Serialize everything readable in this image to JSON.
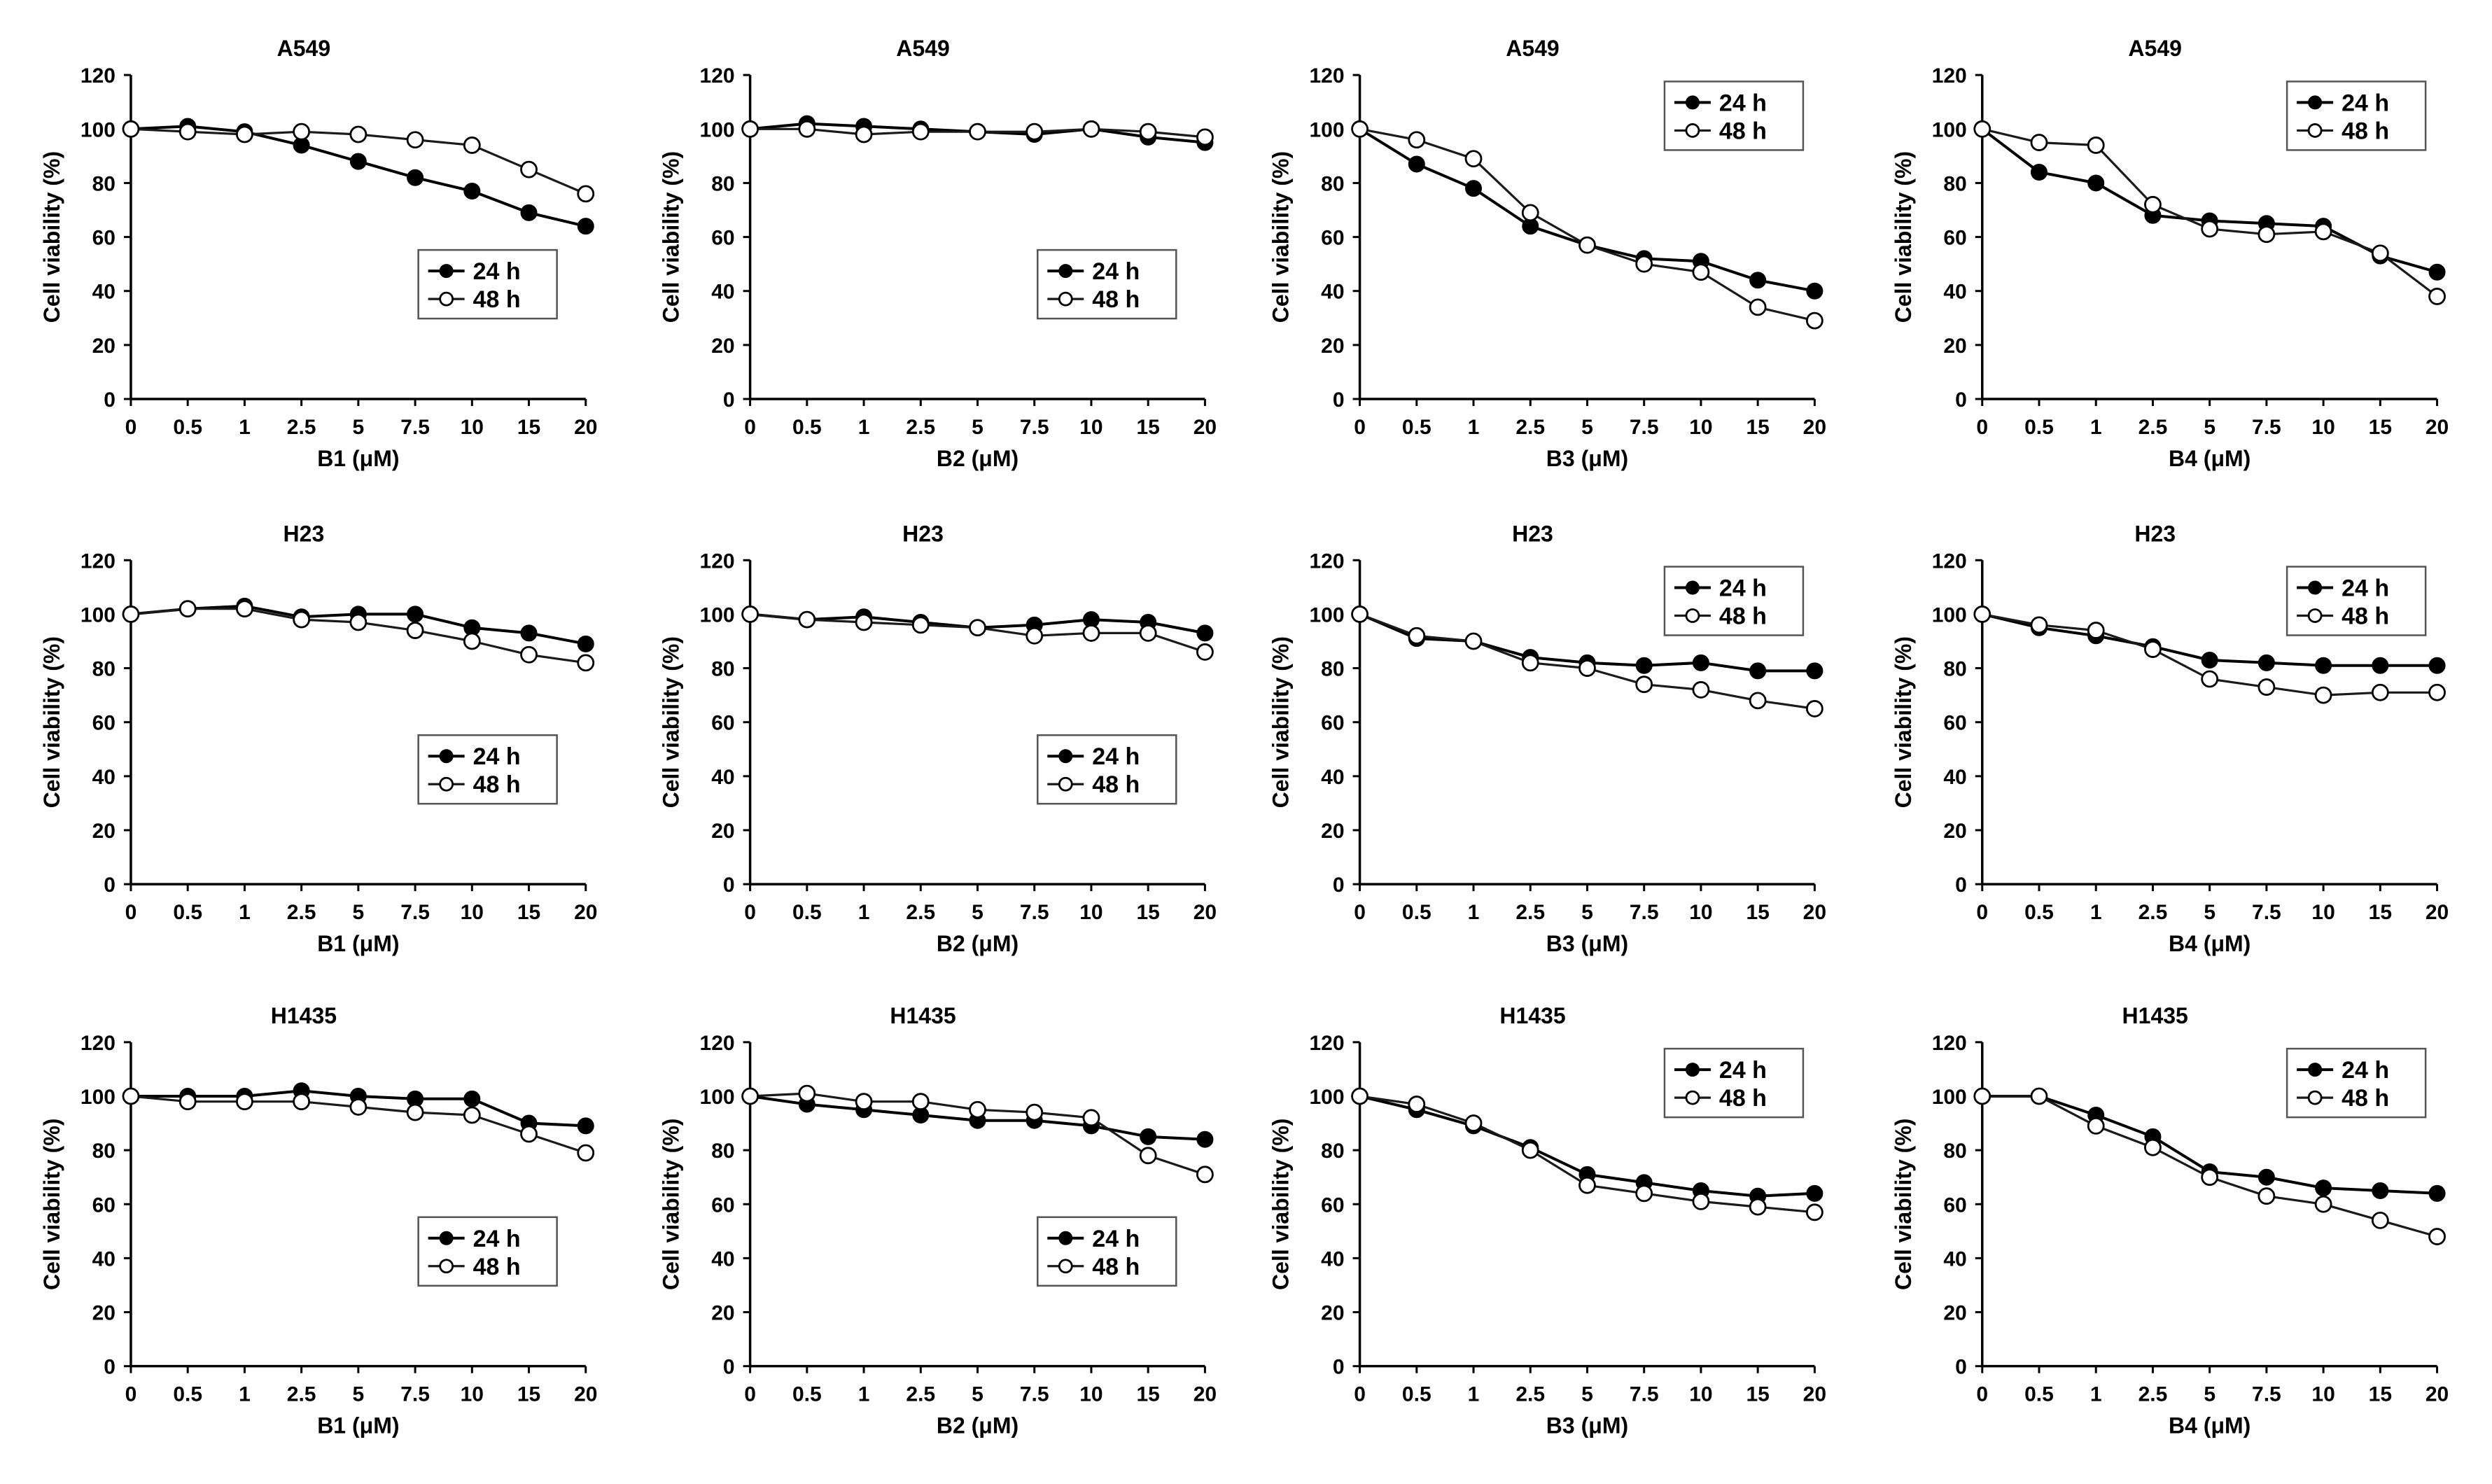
{
  "chart_data": [
    {
      "type": "line",
      "title": "A549",
      "xlabel": "B1 (μM)",
      "ylabel": "Cell viability (%)",
      "categories": [
        "0",
        "0.5",
        "1",
        "2.5",
        "5",
        "7.5",
        "10",
        "15",
        "20"
      ],
      "yticks": [
        "0",
        "20",
        "40",
        "60",
        "80",
        "100",
        "120"
      ],
      "ylim": [
        0,
        120
      ],
      "legend_loc": "lower-right",
      "series": [
        {
          "name": "24 h",
          "values": [
            100,
            101,
            99,
            94,
            88,
            82,
            77,
            69,
            64
          ]
        },
        {
          "name": "48 h",
          "values": [
            100,
            99,
            98,
            99,
            98,
            96,
            94,
            85,
            76
          ]
        }
      ]
    },
    {
      "type": "line",
      "title": "A549",
      "xlabel": "B2 (μM)",
      "ylabel": "Cell viability (%)",
      "categories": [
        "0",
        "0.5",
        "1",
        "2.5",
        "5",
        "7.5",
        "10",
        "15",
        "20"
      ],
      "yticks": [
        "0",
        "20",
        "40",
        "60",
        "80",
        "100",
        "120"
      ],
      "ylim": [
        0,
        120
      ],
      "legend_loc": "lower-right",
      "series": [
        {
          "name": "24 h",
          "values": [
            100,
            102,
            101,
            100,
            99,
            98,
            100,
            97,
            95
          ]
        },
        {
          "name": "48 h",
          "values": [
            100,
            100,
            98,
            99,
            99,
            99,
            100,
            99,
            97
          ]
        }
      ]
    },
    {
      "type": "line",
      "title": "A549",
      "xlabel": "B3 (μM)",
      "ylabel": "Cell viability (%)",
      "categories": [
        "0",
        "0.5",
        "1",
        "2.5",
        "5",
        "7.5",
        "10",
        "15",
        "20"
      ],
      "yticks": [
        "0",
        "20",
        "40",
        "60",
        "80",
        "100",
        "120"
      ],
      "ylim": [
        0,
        120
      ],
      "legend_loc": "upper-right",
      "series": [
        {
          "name": "24 h",
          "values": [
            100,
            87,
            78,
            64,
            57,
            52,
            51,
            44,
            40
          ]
        },
        {
          "name": "48 h",
          "values": [
            100,
            96,
            89,
            69,
            57,
            50,
            47,
            34,
            29
          ]
        }
      ]
    },
    {
      "type": "line",
      "title": "A549",
      "xlabel": "B4 (μM)",
      "ylabel": "Cell viability (%)",
      "categories": [
        "0",
        "0.5",
        "1",
        "2.5",
        "5",
        "7.5",
        "10",
        "15",
        "20"
      ],
      "yticks": [
        "0",
        "20",
        "40",
        "60",
        "80",
        "100",
        "120"
      ],
      "ylim": [
        0,
        120
      ],
      "legend_loc": "upper-right",
      "series": [
        {
          "name": "24 h",
          "values": [
            100,
            84,
            80,
            68,
            66,
            65,
            64,
            53,
            47
          ]
        },
        {
          "name": "48 h",
          "values": [
            100,
            95,
            94,
            72,
            63,
            61,
            62,
            54,
            38
          ]
        }
      ]
    },
    {
      "type": "line",
      "title": "H23",
      "xlabel": "B1 (μM)",
      "ylabel": "Cell viability (%)",
      "categories": [
        "0",
        "0.5",
        "1",
        "2.5",
        "5",
        "7.5",
        "10",
        "15",
        "20"
      ],
      "yticks": [
        "0",
        "20",
        "40",
        "60",
        "80",
        "100",
        "120"
      ],
      "ylim": [
        0,
        120
      ],
      "legend_loc": "lower-right",
      "series": [
        {
          "name": "24 h",
          "values": [
            100,
            102,
            103,
            99,
            100,
            100,
            95,
            93,
            89
          ]
        },
        {
          "name": "48 h",
          "values": [
            100,
            102,
            102,
            98,
            97,
            94,
            90,
            85,
            82
          ]
        }
      ]
    },
    {
      "type": "line",
      "title": "H23",
      "xlabel": "B2 (μM)",
      "ylabel": "Cell viability (%)",
      "categories": [
        "0",
        "0.5",
        "1",
        "2.5",
        "5",
        "7.5",
        "10",
        "15",
        "20"
      ],
      "yticks": [
        "0",
        "20",
        "40",
        "60",
        "80",
        "100",
        "120"
      ],
      "ylim": [
        0,
        120
      ],
      "legend_loc": "lower-right",
      "series": [
        {
          "name": "24 h",
          "values": [
            100,
            98,
            99,
            97,
            95,
            96,
            98,
            97,
            93
          ]
        },
        {
          "name": "48 h",
          "values": [
            100,
            98,
            97,
            96,
            95,
            92,
            93,
            93,
            86
          ]
        }
      ]
    },
    {
      "type": "line",
      "title": "H23",
      "xlabel": "B3 (μM)",
      "ylabel": "Cell viability (%)",
      "categories": [
        "0",
        "0.5",
        "1",
        "2.5",
        "5",
        "7.5",
        "10",
        "15",
        "20"
      ],
      "yticks": [
        "0",
        "20",
        "40",
        "60",
        "80",
        "100",
        "120"
      ],
      "ylim": [
        0,
        120
      ],
      "legend_loc": "upper-right",
      "series": [
        {
          "name": "24 h",
          "values": [
            100,
            91,
            90,
            84,
            82,
            81,
            82,
            79,
            79
          ]
        },
        {
          "name": "48 h",
          "values": [
            100,
            92,
            90,
            82,
            80,
            74,
            72,
            68,
            65
          ]
        }
      ]
    },
    {
      "type": "line",
      "title": "H23",
      "xlabel": "B4 (μM)",
      "ylabel": "Cell viability (%)",
      "categories": [
        "0",
        "0.5",
        "1",
        "2.5",
        "5",
        "7.5",
        "10",
        "15",
        "20"
      ],
      "yticks": [
        "0",
        "20",
        "40",
        "60",
        "80",
        "100",
        "120"
      ],
      "ylim": [
        0,
        120
      ],
      "legend_loc": "upper-right",
      "series": [
        {
          "name": "24 h",
          "values": [
            100,
            95,
            92,
            88,
            83,
            82,
            81,
            81,
            81
          ]
        },
        {
          "name": "48 h",
          "values": [
            100,
            96,
            94,
            87,
            76,
            73,
            70,
            71,
            71
          ]
        }
      ]
    },
    {
      "type": "line",
      "title": "H1435",
      "xlabel": "B1 (μM)",
      "ylabel": "Cell viability (%)",
      "categories": [
        "0",
        "0.5",
        "1",
        "2.5",
        "5",
        "7.5",
        "10",
        "15",
        "20"
      ],
      "yticks": [
        "0",
        "20",
        "40",
        "60",
        "80",
        "100",
        "120"
      ],
      "ylim": [
        0,
        120
      ],
      "legend_loc": "lower-right",
      "series": [
        {
          "name": "24 h",
          "values": [
            100,
            100,
            100,
            102,
            100,
            99,
            99,
            90,
            89
          ]
        },
        {
          "name": "48 h",
          "values": [
            100,
            98,
            98,
            98,
            96,
            94,
            93,
            86,
            79
          ]
        }
      ]
    },
    {
      "type": "line",
      "title": "H1435",
      "xlabel": "B2 (μM)",
      "ylabel": "Cell viability (%)",
      "categories": [
        "0",
        "0.5",
        "1",
        "2.5",
        "5",
        "7.5",
        "10",
        "15",
        "20"
      ],
      "yticks": [
        "0",
        "20",
        "40",
        "60",
        "80",
        "100",
        "120"
      ],
      "ylim": [
        0,
        120
      ],
      "legend_loc": "lower-right",
      "series": [
        {
          "name": "24 h",
          "values": [
            100,
            97,
            95,
            93,
            91,
            91,
            89,
            85,
            84
          ]
        },
        {
          "name": "48 h",
          "values": [
            100,
            101,
            98,
            98,
            95,
            94,
            92,
            78,
            71
          ]
        }
      ]
    },
    {
      "type": "line",
      "title": "H1435",
      "xlabel": "B3 (μM)",
      "ylabel": "Cell viability (%)",
      "categories": [
        "0",
        "0.5",
        "1",
        "2.5",
        "5",
        "7.5",
        "10",
        "15",
        "20"
      ],
      "yticks": [
        "0",
        "20",
        "40",
        "60",
        "80",
        "100",
        "120"
      ],
      "ylim": [
        0,
        120
      ],
      "legend_loc": "upper-right",
      "series": [
        {
          "name": "24 h",
          "values": [
            100,
            95,
            89,
            81,
            71,
            68,
            65,
            63,
            64
          ]
        },
        {
          "name": "48 h",
          "values": [
            100,
            97,
            90,
            80,
            67,
            64,
            61,
            59,
            57
          ]
        }
      ]
    },
    {
      "type": "line",
      "title": "H1435",
      "xlabel": "B4 (μM)",
      "ylabel": "Cell viability (%)",
      "categories": [
        "0",
        "0.5",
        "1",
        "2.5",
        "5",
        "7.5",
        "10",
        "15",
        "20"
      ],
      "yticks": [
        "0",
        "20",
        "40",
        "60",
        "80",
        "100",
        "120"
      ],
      "ylim": [
        0,
        120
      ],
      "legend_loc": "upper-right",
      "series": [
        {
          "name": "24 h",
          "values": [
            100,
            100,
            93,
            85,
            72,
            70,
            66,
            65,
            64
          ]
        },
        {
          "name": "48 h",
          "values": [
            100,
            100,
            89,
            81,
            70,
            63,
            60,
            54,
            48
          ]
        }
      ]
    }
  ]
}
